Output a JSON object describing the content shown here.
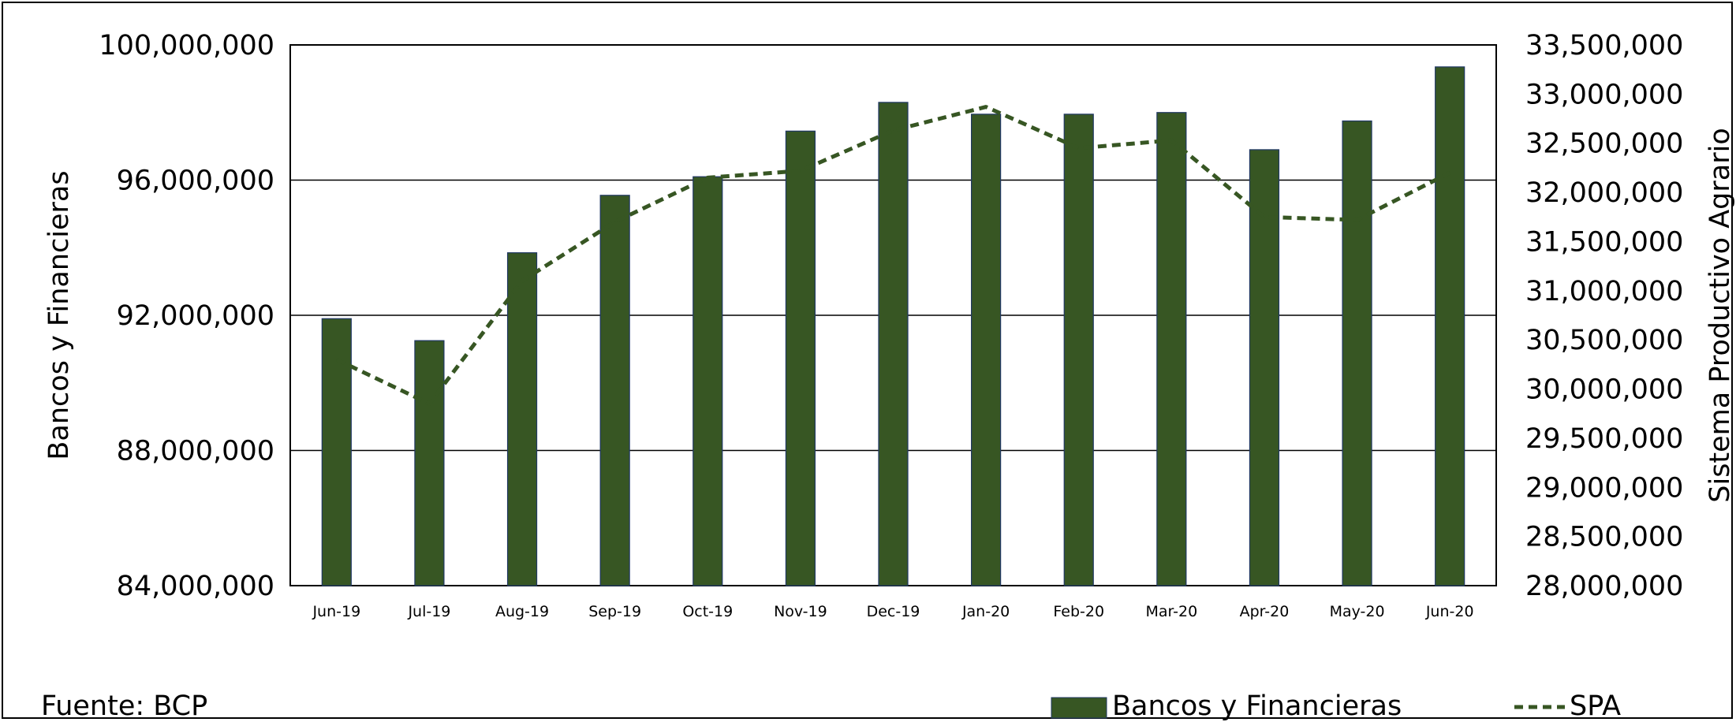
{
  "chart_data": {
    "type": "bar",
    "categories": [
      "Jun-19",
      "Jul-19",
      "Aug-19",
      "Sep-19",
      "Oct-19",
      "Nov-19",
      "Dec-19",
      "Jan-20",
      "Feb-20",
      "Mar-20",
      "Apr-20",
      "May-20",
      "Jun-20"
    ],
    "series": [
      {
        "name": "Bancos y Financieras",
        "type": "bar",
        "axis": "left",
        "color": "#375623",
        "values": [
          91900000,
          91250000,
          93850000,
          95550000,
          96100000,
          97450000,
          98300000,
          97950000,
          97950000,
          98000000,
          96900000,
          97750000,
          99350000
        ]
      },
      {
        "name": "SPA",
        "type": "line",
        "line_style": "dashed",
        "axis": "right",
        "color": "#375623",
        "values": [
          30300000,
          29850000,
          31100000,
          31700000,
          32150000,
          32220000,
          32630000,
          32870000,
          32450000,
          32530000,
          31750000,
          31720000,
          32200000
        ]
      }
    ],
    "ylabel": "Bancos y Financieras",
    "y2label": "Sistema Productivo Agrario",
    "ylim": [
      84000000,
      100000000
    ],
    "y2lim": [
      28000000,
      33500000
    ],
    "yticks": [
      "84,000,000",
      "88,000,000",
      "92,000,000",
      "96,000,000",
      "100,000,000"
    ],
    "y2ticks": [
      "28,000,000",
      "28,500,000",
      "29,000,000",
      "29,500,000",
      "30,000,000",
      "30,500,000",
      "31,000,000",
      "31,500,000",
      "32,000,000",
      "32,500,000",
      "33,000,000",
      "33,500,000"
    ],
    "grid": "horizontal major (left axis)",
    "legend": "bottom-right",
    "source": "Fuente: BCP"
  }
}
